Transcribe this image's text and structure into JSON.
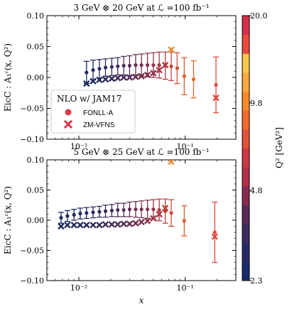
{
  "colors": {
    "fonll": "#d43a4f",
    "zm": "#d43a4f",
    "errbar_scale": [
      "#1b2a5e",
      "#3b2d5e",
      "#6a2f55",
      "#9a3648",
      "#c44a35",
      "#e06a2a",
      "#f08a30"
    ]
  },
  "legend": {
    "title": "NLO w/ JAM17",
    "entries": [
      {
        "label": "FONLL-A",
        "marker": "circle"
      },
      {
        "label": "ZM-VFNS",
        "marker": "cross"
      }
    ],
    "placement": "left-lower (top panel)"
  },
  "colorbar": {
    "label": "Q² [GeV²]",
    "tick_labels": [
      "20.0",
      "9.8",
      "4.8",
      "2.3"
    ],
    "range": [
      2.3,
      20.0
    ],
    "colors": [
      "#1a2a6c",
      "#252a66",
      "#3a2a5e",
      "#5b2a58",
      "#8a2a50",
      "#b0304a",
      "#cc3a42",
      "#e2543a",
      "#f06a2c",
      "#f78a2a",
      "#fca840",
      "#f7c84a",
      "#e94a3c",
      "#d6304e"
    ]
  },
  "chart_data": [
    {
      "type": "scatter",
      "title": "3 GeV ⊗ 20 GeV at ℒ =100 fb⁻¹",
      "xlabel": "x",
      "ylabel": "EicC : A₁ᶜ(x, Q²)",
      "xscale": "log",
      "xlim": [
        0.005,
        0.3
      ],
      "ylim": [
        -0.1,
        0.1
      ],
      "yticks": [
        "−0.10",
        "−0.05",
        "0.00",
        "0.05",
        "0.10"
      ],
      "xticks": [
        "10⁻²",
        "10⁻¹"
      ],
      "fonll": [
        {
          "x": 0.0118,
          "y": 0.008,
          "err": 0.018,
          "c": "#1b2a5e"
        },
        {
          "x": 0.0136,
          "y": 0.012,
          "err": 0.016,
          "c": "#1d2a60"
        },
        {
          "x": 0.0156,
          "y": 0.014,
          "err": 0.015,
          "c": "#242a60"
        },
        {
          "x": 0.0178,
          "y": 0.016,
          "err": 0.014,
          "c": "#2b2a5e"
        },
        {
          "x": 0.0204,
          "y": 0.017,
          "err": 0.014,
          "c": "#352b5c"
        },
        {
          "x": 0.0232,
          "y": 0.018,
          "err": 0.014,
          "c": "#402c5a"
        },
        {
          "x": 0.0264,
          "y": 0.019,
          "err": 0.015,
          "c": "#4b2d58"
        },
        {
          "x": 0.03,
          "y": 0.019,
          "err": 0.016,
          "c": "#582d56"
        },
        {
          "x": 0.0342,
          "y": 0.02,
          "err": 0.017,
          "c": "#662f53"
        },
        {
          "x": 0.0388,
          "y": 0.02,
          "err": 0.018,
          "c": "#743150"
        },
        {
          "x": 0.0442,
          "y": 0.02,
          "err": 0.019,
          "c": "#83334c"
        },
        {
          "x": 0.0502,
          "y": 0.02,
          "err": 0.02,
          "c": "#923549"
        },
        {
          "x": 0.057,
          "y": 0.02,
          "err": 0.021,
          "c": "#a23845"
        },
        {
          "x": 0.065,
          "y": 0.019,
          "err": 0.022,
          "c": "#b33c40"
        },
        {
          "x": 0.074,
          "y": 0.018,
          "err": 0.023,
          "c": "#c4423a"
        },
        {
          "x": 0.084,
          "y": 0.015,
          "err": 0.025,
          "c": "#d44c34"
        },
        {
          "x": 0.098,
          "y": 0.002,
          "err": 0.03,
          "c": "#e45a2e"
        },
        {
          "x": 0.12,
          "y": -0.003,
          "err": 0.03,
          "c": "#ee682a"
        },
        {
          "x": 0.195,
          "y": -0.012,
          "err": 0.045,
          "c": "#e5463c"
        }
      ],
      "zm": [
        {
          "x": 0.0118,
          "y": -0.01,
          "c": "#1b2a5e"
        },
        {
          "x": 0.0136,
          "y": -0.006,
          "c": "#1d2a60"
        },
        {
          "x": 0.0156,
          "y": -0.004,
          "c": "#242a60"
        },
        {
          "x": 0.0178,
          "y": -0.003,
          "c": "#2b2a5e"
        },
        {
          "x": 0.0204,
          "y": -0.002,
          "c": "#352b5c"
        },
        {
          "x": 0.0232,
          "y": -0.001,
          "c": "#402c5a"
        },
        {
          "x": 0.0264,
          "y": 0.0,
          "c": "#4b2d58"
        },
        {
          "x": 0.03,
          "y": 0.0,
          "c": "#582d56"
        },
        {
          "x": 0.0342,
          "y": 0.001,
          "c": "#662f53"
        },
        {
          "x": 0.0388,
          "y": 0.002,
          "c": "#743150"
        },
        {
          "x": 0.0442,
          "y": 0.004,
          "c": "#83334c"
        },
        {
          "x": 0.0502,
          "y": 0.007,
          "c": "#923549"
        },
        {
          "x": 0.057,
          "y": 0.012,
          "c": "#a23845"
        },
        {
          "x": 0.065,
          "y": 0.02,
          "c": "#b33c40"
        },
        {
          "x": 0.074,
          "y": 0.045,
          "c": "#f08a30"
        },
        {
          "x": 0.195,
          "y": -0.033,
          "c": "#e5463c"
        }
      ]
    },
    {
      "type": "scatter",
      "title": "5 GeV ⊗ 25 GeV at ℒ =100 fb⁻¹",
      "xlabel": "x",
      "ylabel": "EicC : A₁ᶜ(x, Q²)",
      "xscale": "log",
      "xlim": [
        0.005,
        0.3
      ],
      "ylim": [
        -0.1,
        0.1
      ],
      "yticks": [
        "−0.10",
        "−0.05",
        "0.00",
        "0.05",
        "0.10"
      ],
      "xticks": [
        "10⁻²",
        "10⁻¹"
      ],
      "fonll": [
        {
          "x": 0.0068,
          "y": 0.004,
          "err": 0.009,
          "c": "#1b2a5e"
        },
        {
          "x": 0.0078,
          "y": 0.007,
          "err": 0.009,
          "c": "#1c2a60"
        },
        {
          "x": 0.009,
          "y": 0.009,
          "err": 0.009,
          "c": "#1f2a60"
        },
        {
          "x": 0.0103,
          "y": 0.011,
          "err": 0.009,
          "c": "#232a60"
        },
        {
          "x": 0.0118,
          "y": 0.012,
          "err": 0.009,
          "c": "#272a5f"
        },
        {
          "x": 0.0136,
          "y": 0.013,
          "err": 0.009,
          "c": "#2c2a5e"
        },
        {
          "x": 0.0156,
          "y": 0.014,
          "err": 0.009,
          "c": "#322b5d"
        },
        {
          "x": 0.0178,
          "y": 0.015,
          "err": 0.01,
          "c": "#392b5c"
        },
        {
          "x": 0.0204,
          "y": 0.016,
          "err": 0.01,
          "c": "#412c5a"
        },
        {
          "x": 0.0232,
          "y": 0.017,
          "err": 0.011,
          "c": "#4a2d58"
        },
        {
          "x": 0.0264,
          "y": 0.017,
          "err": 0.011,
          "c": "#552d56"
        },
        {
          "x": 0.03,
          "y": 0.018,
          "err": 0.012,
          "c": "#612e54"
        },
        {
          "x": 0.0342,
          "y": 0.018,
          "err": 0.013,
          "c": "#6e3051"
        },
        {
          "x": 0.0388,
          "y": 0.018,
          "err": 0.014,
          "c": "#7c324e"
        },
        {
          "x": 0.0442,
          "y": 0.018,
          "err": 0.015,
          "c": "#8b344a"
        },
        {
          "x": 0.0502,
          "y": 0.018,
          "err": 0.016,
          "c": "#9b3746"
        },
        {
          "x": 0.057,
          "y": 0.017,
          "err": 0.018,
          "c": "#ac3a42"
        },
        {
          "x": 0.065,
          "y": 0.015,
          "err": 0.02,
          "c": "#be403c"
        },
        {
          "x": 0.074,
          "y": 0.012,
          "err": 0.022,
          "c": "#cf4a36"
        },
        {
          "x": 0.098,
          "y": -0.001,
          "err": 0.025,
          "c": "#e25a2f"
        },
        {
          "x": 0.19,
          "y": -0.02,
          "err": 0.05,
          "c": "#e5463c"
        }
      ],
      "zm": [
        {
          "x": 0.0068,
          "y": -0.01,
          "c": "#1b2a5e"
        },
        {
          "x": 0.0078,
          "y": -0.008,
          "c": "#1c2a60"
        },
        {
          "x": 0.009,
          "y": -0.008,
          "c": "#1f2a60"
        },
        {
          "x": 0.0103,
          "y": -0.008,
          "c": "#232a60"
        },
        {
          "x": 0.0118,
          "y": -0.008,
          "c": "#272a5f"
        },
        {
          "x": 0.0136,
          "y": -0.008,
          "c": "#2c2a5e"
        },
        {
          "x": 0.0156,
          "y": -0.008,
          "c": "#322b5d"
        },
        {
          "x": 0.0178,
          "y": -0.007,
          "c": "#392b5c"
        },
        {
          "x": 0.0204,
          "y": -0.007,
          "c": "#412c5a"
        },
        {
          "x": 0.0232,
          "y": -0.007,
          "c": "#4a2d58"
        },
        {
          "x": 0.0264,
          "y": -0.006,
          "c": "#552d56"
        },
        {
          "x": 0.03,
          "y": -0.006,
          "c": "#612e54"
        },
        {
          "x": 0.0342,
          "y": -0.005,
          "c": "#6e3051"
        },
        {
          "x": 0.0388,
          "y": -0.003,
          "c": "#7c324e"
        },
        {
          "x": 0.0442,
          "y": -0.001,
          "c": "#8b344a"
        },
        {
          "x": 0.0502,
          "y": 0.003,
          "c": "#9b3746"
        },
        {
          "x": 0.057,
          "y": 0.01,
          "c": "#ac3a42"
        },
        {
          "x": 0.065,
          "y": 0.02,
          "c": "#be403c"
        },
        {
          "x": 0.074,
          "y": 0.097,
          "c": "#f08a30"
        },
        {
          "x": 0.19,
          "y": -0.027,
          "c": "#e5463c"
        }
      ]
    }
  ]
}
